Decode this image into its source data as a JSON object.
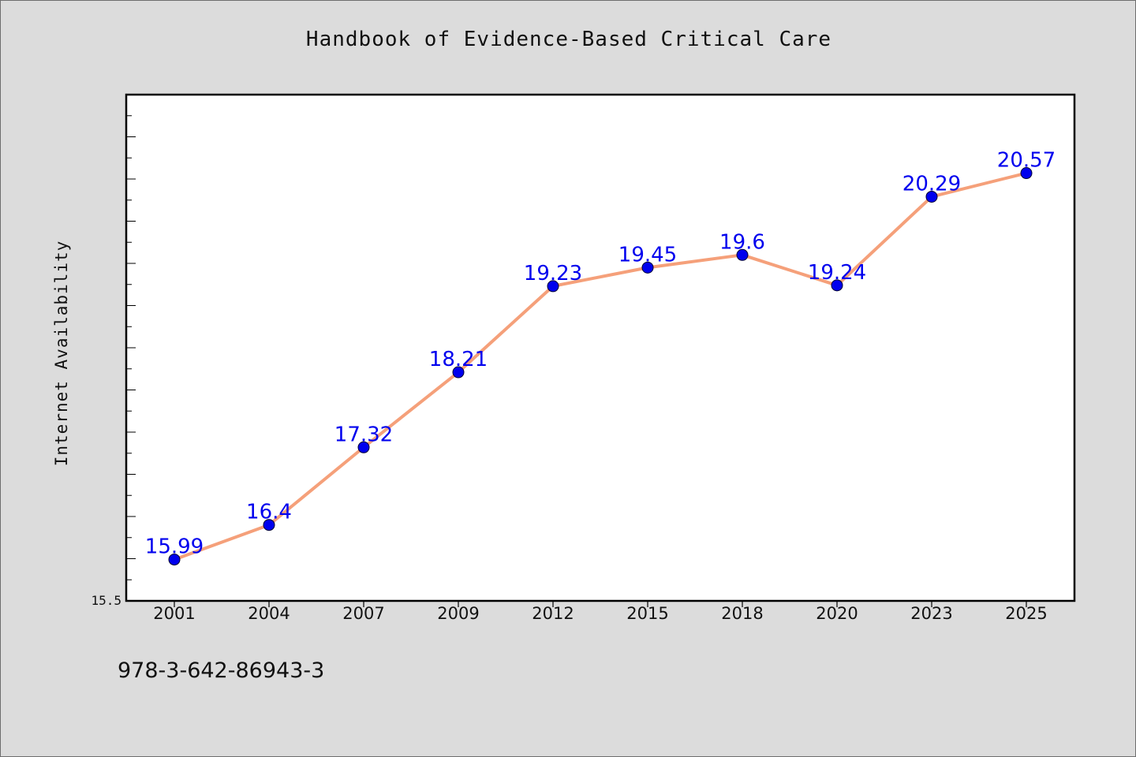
{
  "chart_data": {
    "type": "line",
    "title": "Handbook of Evidence-Based Critical Care",
    "ylabel": "Internet Availability",
    "xlabel": "",
    "categories": [
      "2001",
      "2004",
      "2007",
      "2009",
      "2012",
      "2015",
      "2018",
      "2020",
      "2023",
      "2025"
    ],
    "series": [
      {
        "values": [
          15.99,
          16.4,
          17.32,
          18.21,
          19.23,
          19.45,
          19.6,
          19.24,
          20.29,
          20.57
        ],
        "labels": [
          "15.99",
          "16.4",
          "17.32",
          "18.21",
          "19.23",
          "19.45",
          "19.6",
          "19.24",
          "20.29",
          "20.57"
        ]
      }
    ],
    "ylim": [
      15.5,
      21.5
    ],
    "y_tick_labels": [
      "15.5"
    ],
    "grid": false,
    "legend": "none",
    "colors": {
      "line": "#f5a07a",
      "marker": "#0000ee",
      "label": "#0000ee",
      "axis": "#000000",
      "plot_background": "#ffffff",
      "page_background": "#dcdcdc"
    }
  },
  "footer": {
    "isbn": "978-3-642-86943-3"
  }
}
